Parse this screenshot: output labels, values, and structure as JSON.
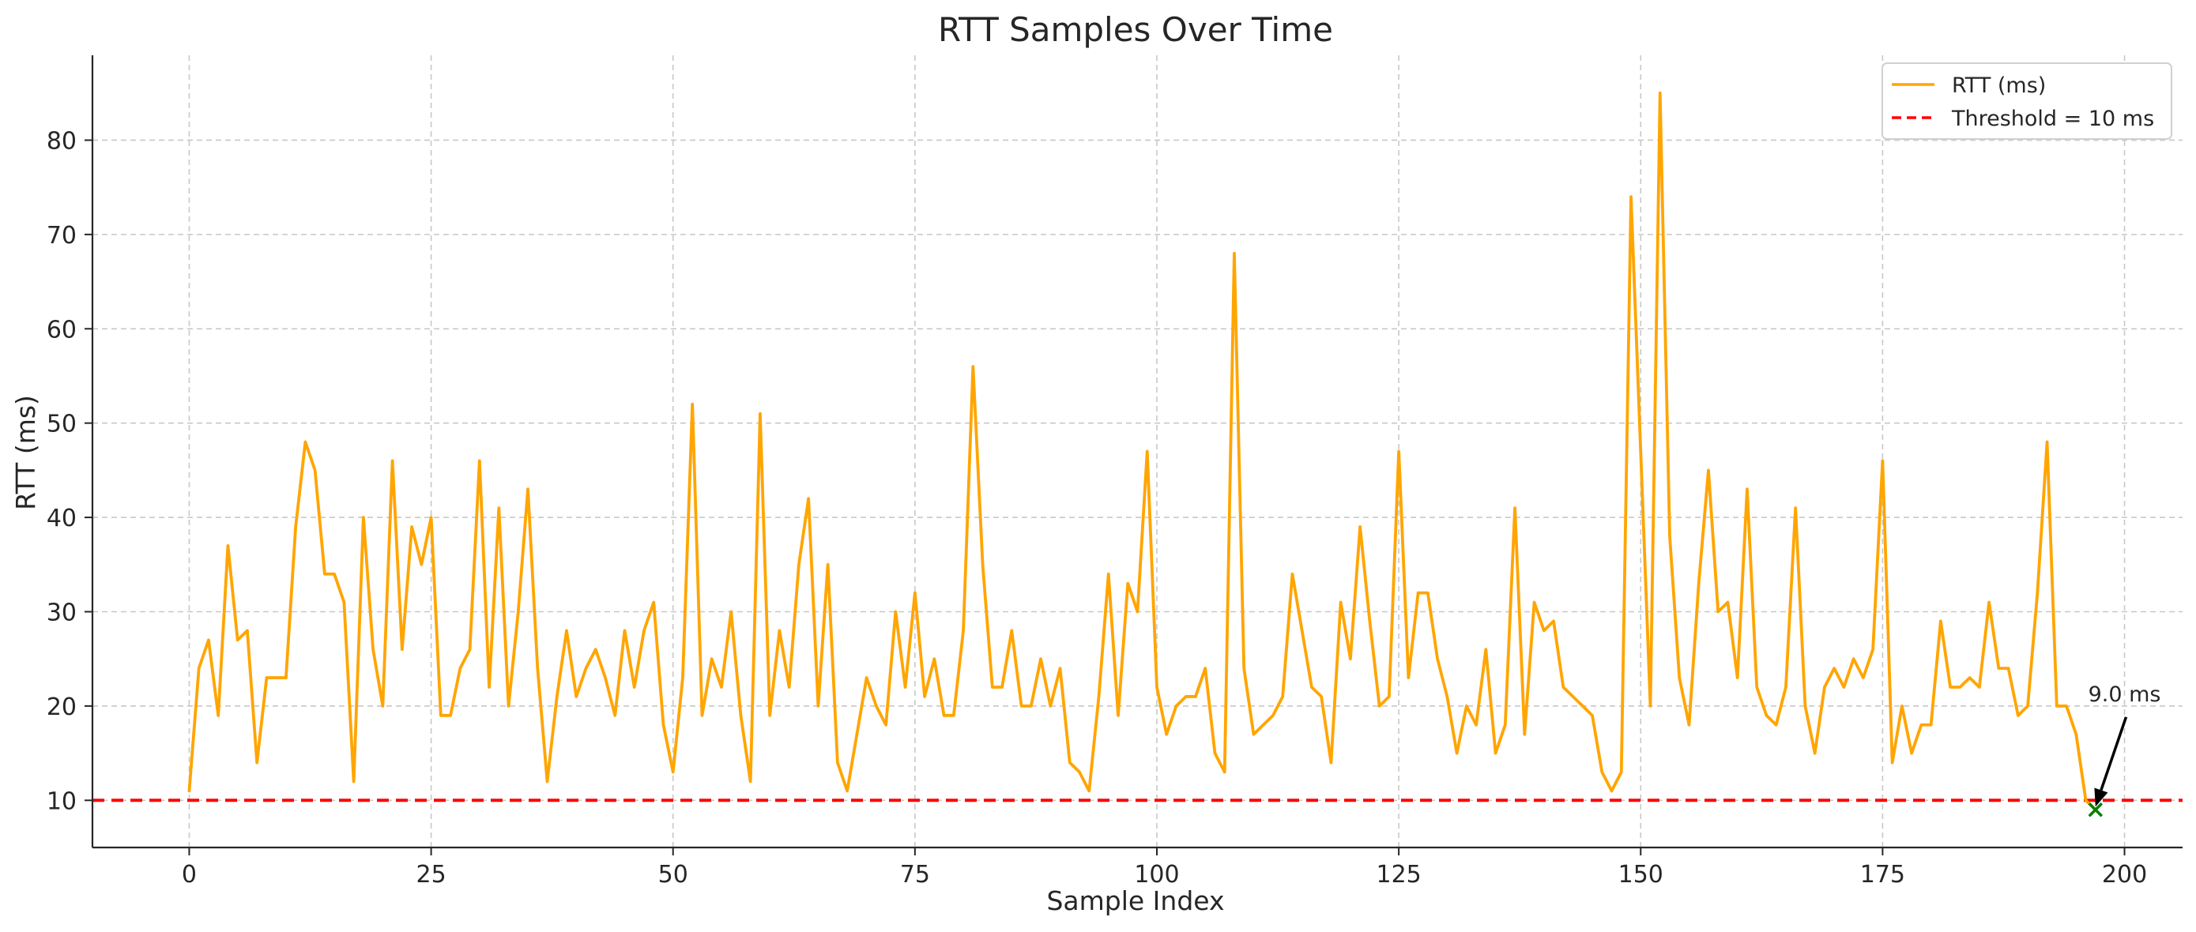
{
  "chart_data": {
    "type": "line",
    "title": "RTT Samples Over Time",
    "xlabel": "Sample Index",
    "ylabel": "RTT (ms)",
    "xlim": [
      -10,
      206
    ],
    "ylim": [
      5,
      89
    ],
    "xticks": [
      0,
      25,
      50,
      75,
      100,
      125,
      150,
      175,
      200
    ],
    "yticks": [
      10,
      20,
      30,
      40,
      50,
      60,
      70,
      80
    ],
    "grid": true,
    "legend_position": "top-right",
    "series": [
      {
        "name": "RTT (ms)",
        "color": "#FFA500",
        "x": [
          0,
          1,
          2,
          3,
          4,
          5,
          6,
          7,
          8,
          9,
          10,
          11,
          12,
          13,
          14,
          15,
          16,
          17,
          18,
          19,
          20,
          21,
          22,
          23,
          24,
          25,
          26,
          27,
          28,
          29,
          30,
          31,
          32,
          33,
          34,
          35,
          36,
          37,
          38,
          39,
          40,
          41,
          42,
          43,
          44,
          45,
          46,
          47,
          48,
          49,
          50,
          51,
          52,
          53,
          54,
          55,
          56,
          57,
          58,
          59,
          60,
          61,
          62,
          63,
          64,
          65,
          66,
          67,
          68,
          69,
          70,
          71,
          72,
          73,
          74,
          75,
          76,
          77,
          78,
          79,
          80,
          81,
          82,
          83,
          84,
          85,
          86,
          87,
          88,
          89,
          90,
          91,
          92,
          93,
          94,
          95,
          96,
          97,
          98,
          99,
          100,
          101,
          102,
          103,
          104,
          105,
          106,
          107,
          108,
          109,
          110,
          111,
          112,
          113,
          114,
          115,
          116,
          117,
          118,
          119,
          120,
          121,
          122,
          123,
          124,
          125,
          126,
          127,
          128,
          129,
          130,
          131,
          132,
          133,
          134,
          135,
          136,
          137,
          138,
          139,
          140,
          141,
          142,
          143,
          144,
          145,
          146,
          147,
          148,
          149,
          150,
          151,
          152,
          153,
          154,
          155,
          156,
          157,
          158,
          159,
          160,
          161,
          162,
          163,
          164,
          165,
          166,
          167,
          168,
          169,
          170,
          171,
          172,
          173,
          174,
          175,
          176,
          177,
          178,
          179,
          180,
          181,
          182,
          183,
          184,
          185,
          186,
          187,
          188,
          189,
          190,
          191,
          192,
          193,
          194,
          195,
          196,
          197
        ],
        "values": [
          11,
          24,
          27,
          19,
          37,
          27,
          28,
          14,
          23,
          23,
          23,
          39,
          48,
          45,
          34,
          34,
          31,
          12,
          40,
          26,
          20,
          46,
          26,
          39,
          35,
          40,
          19,
          19,
          24,
          26,
          46,
          22,
          41,
          20,
          30,
          43,
          24,
          12,
          21,
          28,
          21,
          24,
          26,
          23,
          19,
          28,
          22,
          28,
          31,
          18,
          13,
          23,
          52,
          19,
          25,
          22,
          30,
          19,
          12,
          51,
          19,
          28,
          22,
          35,
          42,
          20,
          35,
          14,
          11,
          17,
          23,
          20,
          18,
          30,
          22,
          32,
          21,
          25,
          19,
          19,
          28,
          56,
          35,
          22,
          22,
          28,
          20,
          20,
          25,
          20,
          24,
          14,
          13,
          11,
          21,
          34,
          19,
          33,
          30,
          47,
          22,
          17,
          20,
          21,
          21,
          24,
          15,
          13,
          68,
          24,
          17,
          18,
          19,
          21,
          34,
          28,
          22,
          21,
          14,
          31,
          25,
          39,
          29,
          20,
          21,
          47,
          23,
          32,
          32,
          25,
          21,
          15,
          20,
          18,
          26,
          15,
          18,
          41,
          17,
          31,
          28,
          29,
          22,
          21,
          20,
          19,
          13,
          11,
          13,
          74,
          47,
          20,
          85,
          38,
          23,
          18,
          33,
          45,
          30,
          31,
          23,
          43,
          22,
          19,
          18,
          22,
          41,
          20,
          15,
          22,
          24,
          22,
          25,
          23,
          26,
          46,
          14,
          20,
          15,
          18,
          18,
          29,
          22,
          22,
          23,
          22,
          31,
          24,
          24,
          19,
          20,
          32,
          48,
          20,
          20,
          17,
          10,
          9
        ]
      },
      {
        "name": "Threshold = 10 ms",
        "color": "#FF0000",
        "y": 10,
        "style": "dashed"
      }
    ],
    "marker": {
      "x": 197,
      "y": 9,
      "color": "#008000",
      "symbol": "x"
    },
    "annotation": {
      "text": "9.0 ms",
      "x": 197,
      "y": 9,
      "text_x": 200,
      "text_y": 19.5
    }
  }
}
